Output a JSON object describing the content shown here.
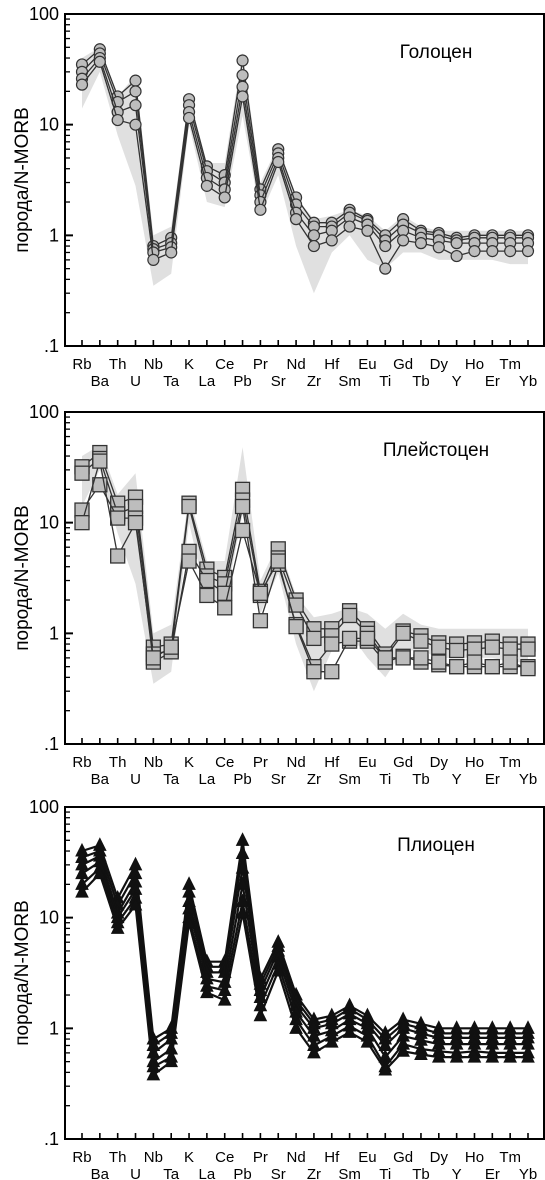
{
  "colors": {
    "envelope": "#e0e0e0",
    "marker_fill": "#bdbdbd",
    "marker_stroke": "#333333",
    "line": "#333333",
    "dark": "#111111"
  },
  "chart_data": [
    {
      "type": "line",
      "title": "Голоцен",
      "ylabel": "порода/N-MORB",
      "yscale": "log",
      "ylim": [
        0.1,
        100
      ],
      "yticklabels": [
        "100",
        "10",
        "1",
        ".1"
      ],
      "marker": "circle",
      "categories": [
        "Rb",
        "Ba",
        "Th",
        "U",
        "Nb",
        "Ta",
        "K",
        "La",
        "Ce",
        "Pb",
        "Pr",
        "Sr",
        "Nd",
        "Zr",
        "Hf",
        "Sm",
        "Eu",
        "Ti",
        "Gd",
        "Tb",
        "Dy",
        "Y",
        "Ho",
        "Er",
        "Tm",
        "Yb"
      ],
      "envelope": {
        "upper": [
          40,
          50,
          18,
          28,
          1.0,
          1.2,
          18,
          4.5,
          4.5,
          45,
          3,
          6.5,
          2.2,
          1.4,
          1.5,
          1.7,
          1.5,
          1.1,
          1.5,
          1.2,
          1.1,
          1.1,
          1.1,
          1.1,
          1.1,
          1.1
        ],
        "lower": [
          14,
          30,
          8,
          2.8,
          0.35,
          0.45,
          10,
          2,
          1.8,
          12,
          1.5,
          3.5,
          0.8,
          0.3,
          0.7,
          1.0,
          0.6,
          0.5,
          0.7,
          0.7,
          0.6,
          0.6,
          0.6,
          0.6,
          0.55,
          0.55
        ]
      },
      "series": [
        {
          "values": [
            35,
            48,
            18,
            25,
            0.8,
            0.95,
            17,
            4.2,
            3.5,
            38,
            2.6,
            6.0,
            2.2,
            1.3,
            1.3,
            1.7,
            1.4,
            1.0,
            1.4,
            1.1,
            1.05,
            0.95,
            1.0,
            1.0,
            1.0,
            1.0
          ]
        },
        {
          "values": [
            30,
            44,
            16,
            20,
            0.75,
            0.85,
            15,
            3.8,
            3.0,
            28,
            2.3,
            5.5,
            1.9,
            1.2,
            1.2,
            1.6,
            1.35,
            0.9,
            1.25,
            1.05,
            1.0,
            0.9,
            0.95,
            0.95,
            0.95,
            0.95
          ]
        },
        {
          "values": [
            26,
            40,
            13,
            15,
            0.7,
            0.78,
            13,
            3.3,
            2.6,
            22,
            2.0,
            5.0,
            1.6,
            1.0,
            1.1,
            1.45,
            1.25,
            0.8,
            1.1,
            0.95,
            0.9,
            0.85,
            0.85,
            0.85,
            0.85,
            0.85
          ]
        },
        {
          "values": [
            23,
            37,
            11,
            10,
            0.6,
            0.7,
            11.5,
            2.8,
            2.2,
            18,
            1.7,
            4.6,
            1.4,
            0.8,
            0.9,
            1.2,
            1.1,
            0.5,
            0.9,
            0.85,
            0.78,
            0.65,
            0.72,
            0.72,
            0.72,
            0.72
          ]
        }
      ]
    },
    {
      "type": "line",
      "title": "Плейстоцен",
      "ylabel": "порода/N-MORB",
      "yscale": "log",
      "ylim": [
        0.1,
        100
      ],
      "yticklabels": [
        "100",
        "10",
        "1",
        ".1"
      ],
      "marker": "square",
      "categories": [
        "Rb",
        "Ba",
        "Th",
        "U",
        "Nb",
        "Ta",
        "K",
        "La",
        "Ce",
        "Pb",
        "Pr",
        "Sr",
        "Nd",
        "Zr",
        "Hf",
        "Sm",
        "Eu",
        "Ti",
        "Gd",
        "Tb",
        "Dy",
        "Y",
        "Ho",
        "Er",
        "Tm",
        "Yb"
      ],
      "envelope": {
        "upper": [
          40,
          50,
          18,
          28,
          1.0,
          1.2,
          18,
          4.5,
          4.5,
          48,
          3,
          6.5,
          2.2,
          1.4,
          1.5,
          1.7,
          1.5,
          1.1,
          1.5,
          1.2,
          1.1,
          1.1,
          1.1,
          1.1,
          1.1,
          1.1
        ],
        "lower": [
          14,
          30,
          8,
          2.8,
          0.35,
          0.45,
          10,
          2,
          1.8,
          12,
          1.5,
          3.5,
          0.8,
          0.3,
          0.7,
          1.0,
          0.6,
          0.4,
          0.7,
          0.7,
          0.6,
          0.6,
          0.6,
          0.6,
          0.55,
          0.55
        ]
      },
      "series": [
        {
          "values": [
            32,
            43,
            15,
            17,
            0.75,
            0.8,
            15,
            3.8,
            3.2,
            20,
            2.4,
            5.8,
            2.0,
            1.1,
            1.1,
            1.6,
            1.1,
            0.65,
            1.05,
            0.95,
            0.82,
            0.8,
            0.82,
            0.85,
            0.8,
            0.8
          ]
        },
        {
          "values": [
            28,
            38,
            12,
            14,
            0.65,
            0.7,
            14,
            3.3,
            2.8,
            16,
            2.2,
            4.8,
            1.8,
            0.9,
            0.95,
            1.45,
            1.0,
            0.6,
            1.0,
            0.85,
            0.75,
            0.7,
            0.72,
            0.75,
            0.72,
            0.72
          ]
        },
        {
          "values": [
            13,
            22,
            11,
            11,
            0.55,
            0.68,
            5.5,
            3.0,
            2.3,
            14,
            1.3,
            4.2,
            1.2,
            0.5,
            0.8,
            0.85,
            0.85,
            0.55,
            0.62,
            0.55,
            0.52,
            0.5,
            0.5,
            0.5,
            0.5,
            0.5
          ]
        },
        {
          "values": [
            10,
            36,
            5,
            10,
            0.6,
            0.75,
            4.5,
            2.2,
            1.7,
            8.5,
            2.3,
            4.5,
            1.15,
            0.45,
            0.45,
            0.9,
            0.9,
            0.6,
            0.6,
            0.6,
            0.55,
            0.5,
            0.55,
            0.5,
            0.55,
            0.48
          ]
        }
      ]
    },
    {
      "type": "line",
      "title": "Плиоцен",
      "ylabel": "порода/N-MORB",
      "yscale": "log",
      "ylim": [
        0.1,
        100
      ],
      "yticklabels": [
        "100",
        "10",
        "1",
        ".1"
      ],
      "marker": "triangle",
      "categories": [
        "Rb",
        "Ba",
        "Th",
        "U",
        "Nb",
        "Ta",
        "K",
        "La",
        "Ce",
        "Pb",
        "Pr",
        "Sr",
        "Nd",
        "Zr",
        "Hf",
        "Sm",
        "Eu",
        "Ti",
        "Gd",
        "Tb",
        "Dy",
        "Y",
        "Ho",
        "Er",
        "Tm",
        "Yb"
      ],
      "series": [
        {
          "values": [
            40,
            45,
            15,
            30,
            0.8,
            1.0,
            20,
            4.0,
            4.0,
            50,
            2.8,
            6.0,
            2.0,
            1.2,
            1.3,
            1.6,
            1.3,
            0.9,
            1.2,
            1.1,
            1.0,
            1.0,
            1.0,
            1.0,
            1.0,
            1.0
          ]
        },
        {
          "values": [
            35,
            40,
            13,
            25,
            0.7,
            0.9,
            17,
            3.6,
            3.6,
            38,
            2.5,
            5.5,
            1.8,
            1.1,
            1.2,
            1.5,
            1.2,
            0.8,
            1.1,
            1.0,
            0.9,
            0.9,
            0.9,
            0.9,
            0.9,
            0.9
          ]
        },
        {
          "values": [
            30,
            36,
            11,
            21,
            0.6,
            0.8,
            14,
            3.2,
            3.2,
            28,
            2.2,
            5.0,
            1.6,
            1.0,
            1.1,
            1.35,
            1.1,
            0.7,
            1.0,
            0.9,
            0.82,
            0.82,
            0.82,
            0.82,
            0.82,
            0.82
          ]
        },
        {
          "values": [
            25,
            32,
            10,
            18,
            0.5,
            0.65,
            12,
            2.8,
            2.6,
            20,
            1.9,
            4.4,
            1.4,
            0.85,
            0.95,
            1.2,
            1.0,
            0.55,
            0.85,
            0.78,
            0.72,
            0.72,
            0.72,
            0.72,
            0.72,
            0.72
          ]
        },
        {
          "values": [
            20,
            28,
            9,
            15,
            0.45,
            0.55,
            10,
            2.4,
            2.2,
            14,
            1.6,
            3.8,
            1.2,
            0.7,
            0.85,
            1.05,
            0.85,
            0.45,
            0.72,
            0.65,
            0.62,
            0.6,
            0.62,
            0.6,
            0.6,
            0.6
          ]
        },
        {
          "values": [
            17,
            25,
            8,
            13,
            0.38,
            0.5,
            9,
            2.1,
            1.8,
            11,
            1.3,
            3.3,
            1.0,
            0.6,
            0.75,
            0.92,
            0.75,
            0.42,
            0.62,
            0.58,
            0.55,
            0.55,
            0.55,
            0.55,
            0.55,
            0.55
          ]
        }
      ]
    }
  ]
}
